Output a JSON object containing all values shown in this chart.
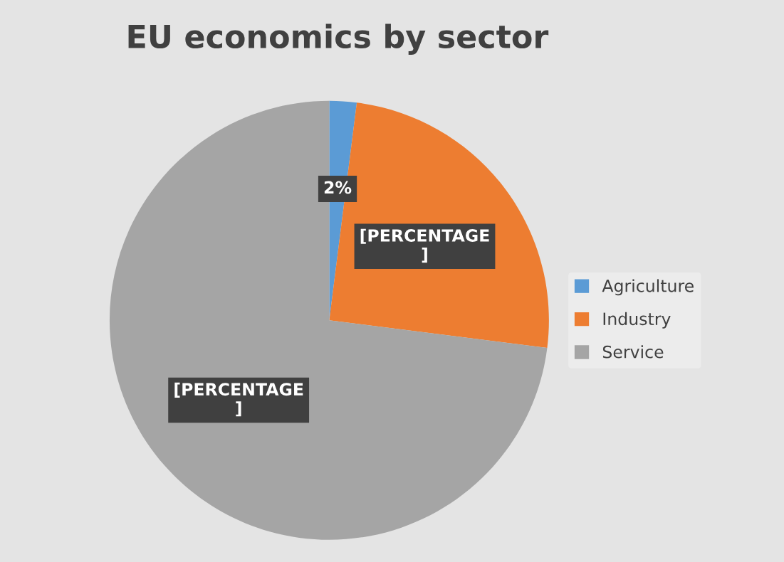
{
  "chart_data": {
    "type": "pie",
    "title": "EU economics by sector",
    "categories": [
      "Agriculture",
      "Industry",
      "Service"
    ],
    "values": [
      2,
      25,
      73
    ],
    "colors": [
      "#5b9bd5",
      "#ed7d31",
      "#a5a5a5"
    ],
    "value_labels": [
      "2%",
      "[PERCENTAGE\n]",
      "[PERCENTAGE\n]"
    ],
    "legend": "right"
  }
}
